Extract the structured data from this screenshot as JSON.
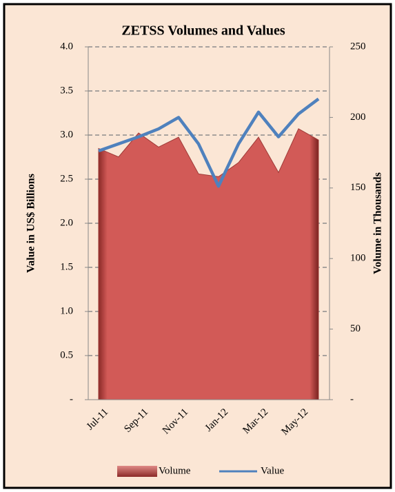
{
  "chart_data": {
    "type": "area-line",
    "title": "ZETSS Volumes and Values",
    "y_label": "Value in US$ Billions",
    "y2_label": "Volume in Thousands",
    "categories": [
      "Jul-11",
      null,
      "Sep-11",
      null,
      "Nov-11",
      null,
      "Jan-12",
      null,
      "Mar-12",
      null,
      "May-12",
      null
    ],
    "series": [
      {
        "name": "Volume",
        "type": "area",
        "axis": "y2",
        "color": "#c0504d",
        "values": [
          178,
          172,
          189,
          179,
          186,
          160,
          158,
          168,
          186,
          161,
          192,
          184
        ]
      },
      {
        "name": "Value",
        "type": "line",
        "color": "#4f81bd",
        "values": [
          2.82,
          2.9,
          2.98,
          3.07,
          3.2,
          2.9,
          2.42,
          2.9,
          3.26,
          2.98,
          3.24,
          3.41
        ]
      }
    ],
    "ylim": [
      0,
      4
    ],
    "yticks": [
      {
        "value": 0,
        "label": "-"
      },
      0.5,
      {
        "value": 1,
        "label": "1.0"
      },
      1.5,
      {
        "value": 2,
        "label": "2.0"
      },
      2.5,
      {
        "value": 3,
        "label": "3.0"
      },
      3.5,
      {
        "value": 4,
        "label": "4.0"
      }
    ],
    "y2lim": [
      0,
      250
    ],
    "y2ticks": [
      {
        "value": 0,
        "label": "-"
      },
      50,
      100,
      150,
      200,
      250
    ],
    "grid": true,
    "legend": "bottom"
  }
}
